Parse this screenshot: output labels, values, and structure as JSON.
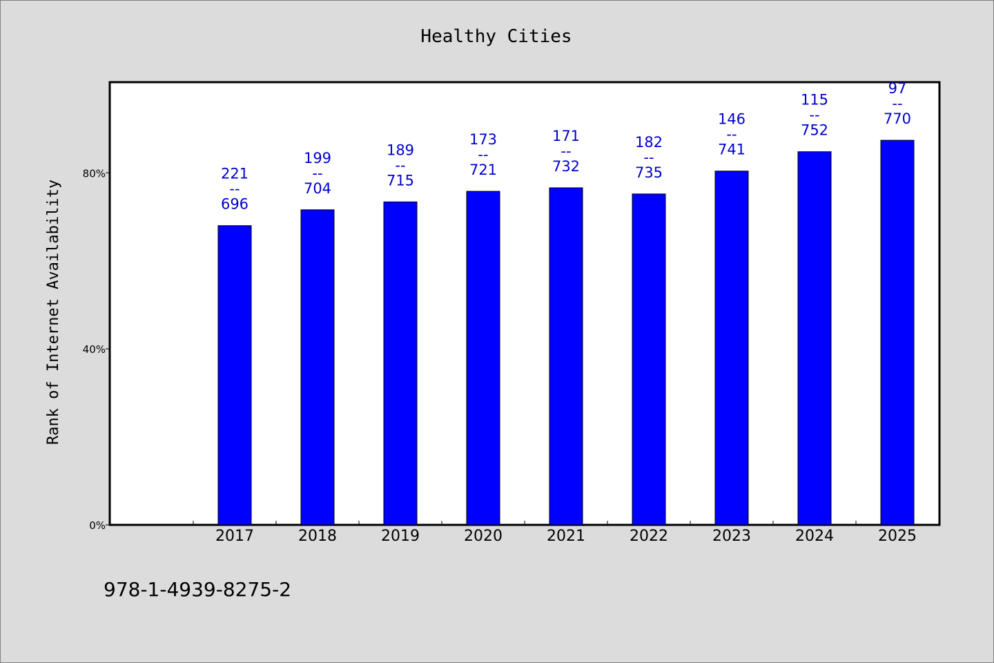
{
  "chart_data": {
    "type": "bar",
    "title": "Healthy Cities",
    "xlabel": "",
    "ylabel": "Rank of Internet Availability",
    "categories": [
      "2017",
      "2018",
      "2019",
      "2020",
      "2021",
      "2022",
      "2023",
      "2024",
      "2025"
    ],
    "values": [
      68,
      71.6,
      73.4,
      75.8,
      76.6,
      75.2,
      80.4,
      84.8,
      87.4
    ],
    "data_labels": [
      [
        "221",
        "--",
        "696"
      ],
      [
        "199",
        "--",
        "704"
      ],
      [
        "189",
        "--",
        "715"
      ],
      [
        "173",
        "--",
        "721"
      ],
      [
        "171",
        "--",
        "732"
      ],
      [
        "182",
        "--",
        "735"
      ],
      [
        "146",
        "--",
        "741"
      ],
      [
        "115",
        "--",
        "752"
      ],
      [
        "97",
        "--",
        "770"
      ]
    ],
    "yticks": [
      0,
      40,
      80
    ],
    "ytick_labels": [
      "0%",
      "40%",
      "80%"
    ],
    "ylim": [
      0,
      100.6
    ],
    "bar_color": "#0000ff",
    "label_color": "#0000cc",
    "grid": false,
    "legend": "none"
  },
  "footer": "978-1-4939-8275-2"
}
